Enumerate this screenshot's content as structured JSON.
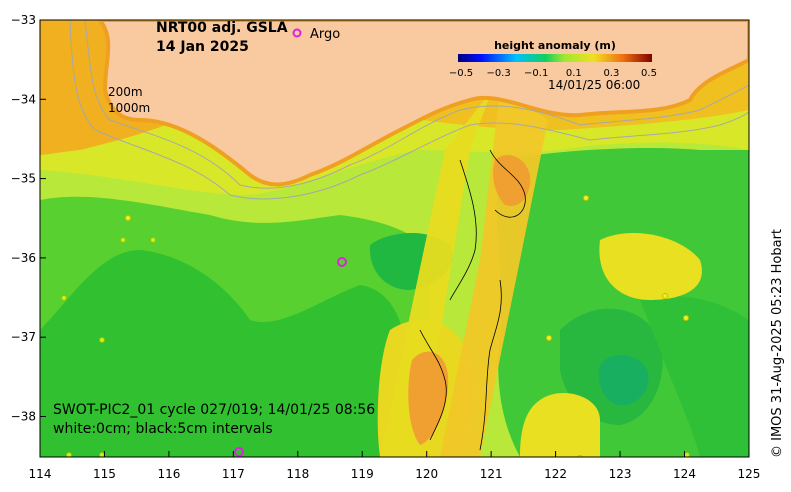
{
  "map": {
    "title_line1": "NRT00 adj. GSLA",
    "title_line2": "14 Jan 2025",
    "legend_marker": "o",
    "legend_label": "Argo",
    "depth_label_200": "200m",
    "depth_label_1000": "1000m",
    "colorbar": {
      "title": "height anomaly (m)",
      "ticks": [
        "−0.5",
        "−0.3",
        "−0.1",
        "0.1",
        "0.3",
        "0.5"
      ],
      "min": -0.5,
      "max": 0.5
    },
    "swot_time": "14/01/25 06:00",
    "pass_line1": "SWOT-PIC2_01 cycle 027/019; 14/01/25 08:56",
    "pass_line2": "white:0cm; black:5cm intervals",
    "credit": "© IMOS 31-Aug-2025 05:23 Hobart",
    "y_ticks": [
      "−33",
      "−34",
      "−35",
      "−36",
      "−37",
      "−38"
    ],
    "x_ticks": [
      "114",
      "115",
      "116",
      "117",
      "118",
      "119",
      "120",
      "121",
      "122",
      "123",
      "124",
      "125"
    ],
    "colors": {
      "land": "#f9c9a0",
      "coast_orange": "#f0a020",
      "high": "#e87010",
      "mid_yellow": "#e8e820",
      "green_light": "#a8e830",
      "green": "#30c830",
      "green_dark": "#18b040",
      "argo": "#e020e0"
    }
  }
}
